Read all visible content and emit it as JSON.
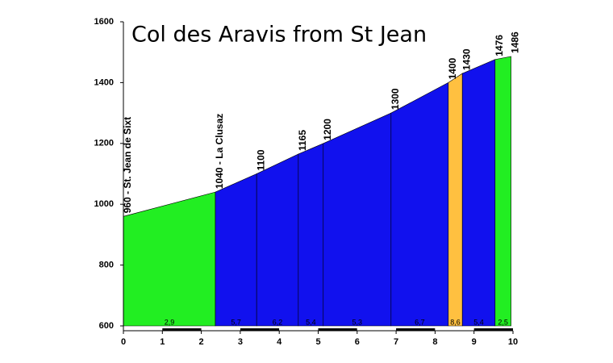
{
  "chart_data": {
    "type": "area",
    "title": "Col des Aravis from St Jean",
    "x": [
      0,
      2.36,
      3.42,
      4.49,
      5.13,
      6.87,
      8.34,
      8.7,
      9.54,
      9.95
    ],
    "values": [
      960,
      1040,
      1100,
      1165,
      1200,
      1300,
      1400,
      1430,
      1476,
      1486
    ],
    "value_labels": [
      "960 - St. Jean de Sixt",
      "1040 - La Clusaz",
      "1100",
      "1165",
      "1200",
      "1300",
      "1400",
      "1430",
      "1476",
      "1486"
    ],
    "segments": {
      "colors": [
        "#22ee22",
        "#1111ee",
        "#1111ee",
        "#1111ee",
        "#1111ee",
        "#1111ee",
        "#ffc040",
        "#1111ee",
        "#22ee22"
      ],
      "values": [
        2.9,
        5.7,
        6.2,
        5.4,
        5.3,
        6.7,
        8.6,
        5.4,
        2.5
      ],
      "value_labels": [
        "2,9",
        "5,7",
        "6,2",
        "5,4",
        "5,3",
        "6,7",
        "8,6",
        "5,4",
        "2,5"
      ]
    },
    "xlim": [
      0,
      10
    ],
    "xticks": [
      0,
      1,
      2,
      3,
      4,
      5,
      6,
      7,
      8,
      9,
      10
    ],
    "ylim": [
      600,
      1600
    ],
    "yticks": [
      600,
      800,
      1000,
      1200,
      1400,
      1600
    ]
  }
}
